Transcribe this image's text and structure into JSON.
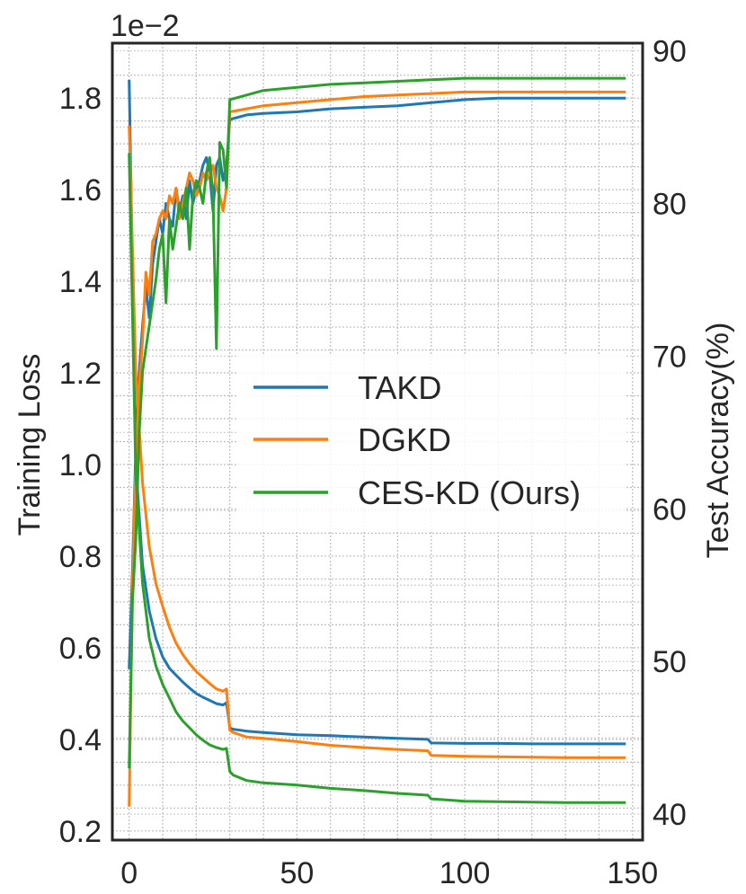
{
  "chart_data": {
    "type": "line",
    "scale_label": "1e−2",
    "xlabel": "",
    "ylabel_left": "Training Loss",
    "ylabel_right": "Test Accuracy(%)",
    "xlim": [
      -5,
      153
    ],
    "ylim_left": [
      0.18,
      1.92
    ],
    "ylim_right": [
      38.3,
      90.5
    ],
    "x_ticks": [
      0,
      50,
      100,
      150
    ],
    "x_tick_labels": [
      "0",
      "50",
      "100",
      "150"
    ],
    "y_left_ticks": [
      0.2,
      0.4,
      0.6,
      0.8,
      1.0,
      1.2,
      1.4,
      1.6,
      1.8
    ],
    "y_left_tick_labels": [
      "0.2",
      "0.4",
      "0.6",
      "0.8",
      "1.0",
      "1.2",
      "1.4",
      "1.6",
      "1.8"
    ],
    "y_right_ticks": [
      40,
      50,
      60,
      70,
      80,
      90
    ],
    "y_right_tick_labels": [
      "40",
      "50",
      "60",
      "70",
      "80",
      "90"
    ],
    "grid": true,
    "legend_position": "center-right",
    "series": [
      {
        "name": "TAKD",
        "color": "#1f77b4",
        "loss_x": [
          0,
          2,
          4,
          6,
          8,
          10,
          12,
          14,
          16,
          18,
          20,
          22,
          24,
          26,
          28,
          29,
          30,
          31,
          35,
          40,
          50,
          60,
          70,
          80,
          89,
          90,
          100,
          110,
          120,
          130,
          140,
          148
        ],
        "loss": [
          1.84,
          1.0,
          0.78,
          0.68,
          0.62,
          0.58,
          0.555,
          0.54,
          0.525,
          0.512,
          0.5,
          0.492,
          0.485,
          0.478,
          0.475,
          0.48,
          0.425,
          0.422,
          0.418,
          0.415,
          0.41,
          0.408,
          0.405,
          0.402,
          0.4,
          0.392,
          0.391,
          0.391,
          0.39,
          0.39,
          0.39,
          0.39
        ],
        "acc_x": [
          0,
          1,
          2,
          3,
          4,
          5,
          6,
          7,
          8,
          9,
          10,
          11,
          12,
          13,
          14,
          15,
          16,
          17,
          18,
          19,
          20,
          21,
          22,
          23,
          24,
          25,
          26,
          27,
          28,
          29,
          30,
          35,
          40,
          50,
          60,
          70,
          80,
          90,
          100,
          110,
          120,
          130,
          140,
          148
        ],
        "acc": [
          49.5,
          56,
          64,
          69,
          72,
          74.5,
          72.5,
          76,
          77.5,
          79,
          78,
          80,
          79,
          78.5,
          81,
          79.5,
          80.5,
          79,
          81.5,
          80,
          81,
          81.5,
          82.5,
          83,
          82,
          79.5,
          82.5,
          83,
          81.5,
          82.5,
          85.5,
          85.8,
          85.9,
          86.0,
          86.2,
          86.3,
          86.4,
          86.6,
          86.8,
          86.9,
          86.9,
          86.9,
          86.9,
          86.9
        ]
      },
      {
        "name": "DGKD",
        "color": "#ff7f0e",
        "loss_x": [
          0,
          2,
          4,
          6,
          8,
          10,
          12,
          14,
          16,
          18,
          20,
          22,
          24,
          26,
          28,
          29,
          30,
          31,
          35,
          40,
          50,
          60,
          70,
          80,
          89,
          90,
          100,
          110,
          120,
          130,
          140,
          148
        ],
        "loss": [
          1.74,
          1.2,
          0.96,
          0.82,
          0.74,
          0.69,
          0.645,
          0.61,
          0.585,
          0.565,
          0.548,
          0.535,
          0.522,
          0.51,
          0.505,
          0.51,
          0.42,
          0.415,
          0.405,
          0.402,
          0.395,
          0.387,
          0.382,
          0.378,
          0.375,
          0.365,
          0.363,
          0.362,
          0.361,
          0.36,
          0.36,
          0.36
        ],
        "acc_x": [
          0,
          1,
          2,
          3,
          4,
          5,
          6,
          7,
          8,
          9,
          10,
          11,
          12,
          13,
          14,
          15,
          16,
          17,
          18,
          19,
          20,
          21,
          22,
          23,
          24,
          25,
          26,
          27,
          28,
          29,
          30,
          35,
          40,
          50,
          60,
          70,
          80,
          90,
          100,
          110,
          120,
          130,
          140,
          148
        ],
        "acc": [
          40.5,
          55,
          63,
          68,
          71,
          75.5,
          74,
          77.5,
          78,
          79,
          79.5,
          79,
          80.5,
          80,
          81,
          79,
          80,
          81,
          82,
          81.5,
          80.5,
          81,
          82,
          81.5,
          82,
          82.5,
          81,
          80.5,
          79.5,
          81,
          86.0,
          86.2,
          86.4,
          86.6,
          86.8,
          87.0,
          87.1,
          87.2,
          87.3,
          87.3,
          87.3,
          87.3,
          87.3,
          87.3
        ]
      },
      {
        "name": "CES-KD (Ours)",
        "color": "#2ca02c",
        "loss_x": [
          0,
          2,
          4,
          6,
          8,
          10,
          12,
          14,
          16,
          18,
          20,
          22,
          24,
          26,
          28,
          29,
          30,
          31,
          35,
          40,
          50,
          60,
          70,
          80,
          89,
          90,
          100,
          110,
          120,
          130,
          140,
          148
        ],
        "loss": [
          1.68,
          0.98,
          0.74,
          0.62,
          0.56,
          0.52,
          0.49,
          0.46,
          0.44,
          0.425,
          0.41,
          0.398,
          0.388,
          0.382,
          0.378,
          0.38,
          0.33,
          0.322,
          0.31,
          0.305,
          0.3,
          0.293,
          0.288,
          0.282,
          0.278,
          0.27,
          0.265,
          0.264,
          0.263,
          0.262,
          0.262,
          0.262
        ],
        "acc_x": [
          0,
          1,
          2,
          3,
          4,
          5,
          6,
          7,
          8,
          9,
          10,
          11,
          12,
          13,
          14,
          15,
          16,
          17,
          18,
          19,
          20,
          21,
          22,
          23,
          24,
          25,
          26,
          27,
          28,
          29,
          30,
          35,
          40,
          50,
          60,
          70,
          80,
          90,
          100,
          110,
          120,
          130,
          140,
          148
        ],
        "acc": [
          43,
          54,
          58,
          65,
          69,
          70.5,
          72,
          73.5,
          75,
          77,
          78,
          73.5,
          79,
          77,
          78.5,
          80,
          79,
          81,
          77,
          80.5,
          81.5,
          81,
          80,
          82,
          83,
          80.5,
          70.5,
          84,
          83.5,
          81,
          86.8,
          87.1,
          87.4,
          87.6,
          87.8,
          87.9,
          88.0,
          88.1,
          88.2,
          88.2,
          88.2,
          88.2,
          88.2,
          88.2
        ]
      }
    ]
  }
}
